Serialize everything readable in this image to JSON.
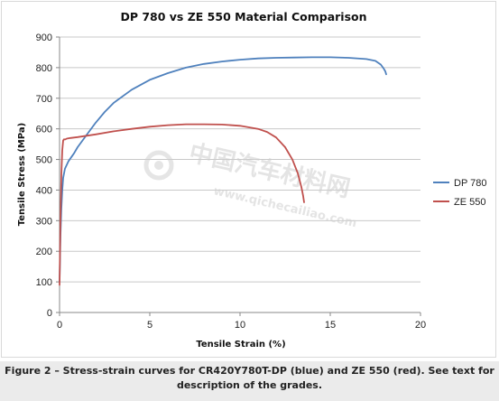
{
  "chart_data": {
    "type": "line",
    "title": "DP 780 vs ZE 550 Material Comparison",
    "xlabel": "Tensile Strain (%)",
    "ylabel": "Tensile Stress (MPa)",
    "xlim": [
      0,
      20
    ],
    "ylim": [
      0,
      900
    ],
    "x_ticks": [
      0,
      5,
      10,
      15,
      20
    ],
    "y_ticks": [
      0,
      100,
      200,
      300,
      400,
      500,
      600,
      700,
      800,
      900
    ],
    "grid": "horizontal",
    "legend_position": "right",
    "series": [
      {
        "name": "DP 780",
        "color": "#4f81bd",
        "points": [
          [
            0.0,
            100
          ],
          [
            0.05,
            250
          ],
          [
            0.1,
            340
          ],
          [
            0.15,
            400
          ],
          [
            0.2,
            440
          ],
          [
            0.3,
            470
          ],
          [
            0.5,
            495
          ],
          [
            0.8,
            520
          ],
          [
            1.0,
            540
          ],
          [
            1.5,
            580
          ],
          [
            2.0,
            620
          ],
          [
            2.5,
            655
          ],
          [
            3.0,
            685
          ],
          [
            4.0,
            728
          ],
          [
            5.0,
            760
          ],
          [
            6.0,
            782
          ],
          [
            7.0,
            800
          ],
          [
            8.0,
            812
          ],
          [
            9.0,
            820
          ],
          [
            10.0,
            826
          ],
          [
            11.0,
            830
          ],
          [
            12.0,
            832
          ],
          [
            13.0,
            833
          ],
          [
            14.0,
            834
          ],
          [
            15.0,
            834
          ],
          [
            16.0,
            832
          ],
          [
            17.0,
            828
          ],
          [
            17.5,
            822
          ],
          [
            17.8,
            810
          ],
          [
            17.95,
            798
          ],
          [
            18.05,
            788
          ],
          [
            18.1,
            778
          ]
        ]
      },
      {
        "name": "ZE 550",
        "color": "#c0504d",
        "points": [
          [
            0.0,
            90
          ],
          [
            0.05,
            300
          ],
          [
            0.1,
            450
          ],
          [
            0.15,
            530
          ],
          [
            0.2,
            562
          ],
          [
            0.25,
            566
          ],
          [
            0.3,
            565
          ],
          [
            0.4,
            568
          ],
          [
            0.6,
            570
          ],
          [
            1.0,
            573
          ],
          [
            2.0,
            582
          ],
          [
            3.0,
            592
          ],
          [
            4.0,
            600
          ],
          [
            5.0,
            607
          ],
          [
            6.0,
            612
          ],
          [
            7.0,
            615
          ],
          [
            8.0,
            615
          ],
          [
            9.0,
            614
          ],
          [
            10.0,
            610
          ],
          [
            11.0,
            600
          ],
          [
            11.5,
            590
          ],
          [
            12.0,
            572
          ],
          [
            12.5,
            540
          ],
          [
            12.9,
            500
          ],
          [
            13.2,
            455
          ],
          [
            13.4,
            410
          ],
          [
            13.5,
            380
          ],
          [
            13.55,
            360
          ]
        ]
      }
    ]
  },
  "watermark": {
    "text_cn": "中国汽车材料网",
    "text_en": "www.qichecailiao.com"
  },
  "caption": {
    "line1": "Figure 2 – Stress-strain curves for CR420Y780T-DP (blue) and ZE 550 (red). See text for",
    "line2": "description of the grades."
  }
}
